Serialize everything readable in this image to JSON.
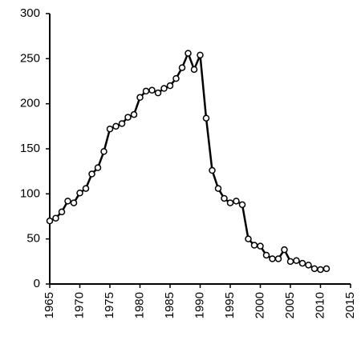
{
  "chart_data": {
    "type": "line",
    "x": [
      1965,
      1966,
      1967,
      1968,
      1969,
      1970,
      1971,
      1972,
      1973,
      1974,
      1975,
      1976,
      1977,
      1978,
      1979,
      1980,
      1981,
      1982,
      1983,
      1984,
      1985,
      1986,
      1987,
      1988,
      1989,
      1990,
      1991,
      1992,
      1993,
      1994,
      1995,
      1996,
      1997,
      1998,
      1999,
      2000,
      2001,
      2002,
      2003,
      2004,
      2005,
      2006,
      2007,
      2008,
      2009,
      2010,
      2011
    ],
    "values": [
      70,
      73,
      80,
      92,
      90,
      101,
      106,
      122,
      129,
      147,
      172,
      175,
      178,
      185,
      188,
      207,
      214,
      215,
      212,
      217,
      220,
      228,
      240,
      256,
      238,
      254,
      184,
      126,
      106,
      95,
      90,
      92,
      88,
      50,
      43,
      42,
      32,
      28,
      28,
      38,
      25,
      26,
      23,
      21,
      17,
      16,
      17
    ],
    "color": "#000000",
    "xlim": [
      1965,
      2015
    ],
    "xticks": [
      1965,
      1970,
      1975,
      1980,
      1985,
      1990,
      1995,
      2000,
      2005,
      2010,
      2015
    ],
    "ylim": [
      0,
      300
    ],
    "yticks": [
      0,
      50,
      100,
      150,
      200,
      250,
      300
    ]
  }
}
